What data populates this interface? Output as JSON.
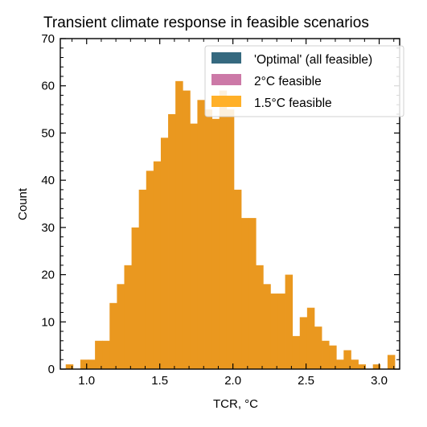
{
  "chart_data": {
    "type": "histogram",
    "title": "Transient climate response in feasible scenarios",
    "xlabel": "TCR, °C",
    "ylabel": "Count",
    "xlim": [
      0.82,
      3.14
    ],
    "ylim": [
      0,
      70
    ],
    "xticks": [
      {
        "value": 1.0,
        "label": "1.0"
      },
      {
        "value": 1.5,
        "label": "1.5"
      },
      {
        "value": 2.0,
        "label": "2.0"
      },
      {
        "value": 2.5,
        "label": "2.5"
      },
      {
        "value": 3.0,
        "label": "3.0"
      }
    ],
    "yticks": [
      {
        "value": 0,
        "label": "0"
      },
      {
        "value": 10,
        "label": "10"
      },
      {
        "value": 20,
        "label": "20"
      },
      {
        "value": 30,
        "label": "30"
      },
      {
        "value": 40,
        "label": "40"
      },
      {
        "value": 50,
        "label": "50"
      },
      {
        "value": 60,
        "label": "60"
      },
      {
        "value": 70,
        "label": "70"
      }
    ],
    "bin_edges": [
      0.857,
      0.907,
      0.957,
      1.007,
      1.057,
      1.107,
      1.157,
      1.207,
      1.257,
      1.307,
      1.357,
      1.407,
      1.457,
      1.507,
      1.557,
      1.607,
      1.657,
      1.707,
      1.757,
      1.807,
      1.857,
      1.907,
      1.957,
      2.007,
      2.057,
      2.107,
      2.157,
      2.207,
      2.257,
      2.307,
      2.357,
      2.407,
      2.457,
      2.507,
      2.557,
      2.607,
      2.657,
      2.707,
      2.757,
      2.807,
      2.857,
      2.907,
      2.957,
      3.007,
      3.057,
      3.107
    ],
    "series": [
      {
        "name": "'Optimal' (all feasible)",
        "color": "#35697f",
        "counts": [
          1,
          0,
          2,
          2,
          6,
          6,
          14,
          18,
          22,
          30,
          38,
          42,
          44,
          49,
          54,
          61,
          59,
          52,
          57,
          55,
          53,
          59,
          55,
          38,
          32,
          32,
          22,
          18,
          16,
          16,
          20,
          7,
          11,
          13,
          9,
          6,
          5,
          2,
          4,
          2,
          1,
          0,
          1,
          0,
          3
        ]
      },
      {
        "name": "2°C feasible",
        "color": "#cc79a7",
        "counts": [
          1,
          0,
          2,
          2,
          6,
          6,
          14,
          18,
          22,
          30,
          38,
          42,
          44,
          49,
          54,
          61,
          59,
          52,
          57,
          55,
          53,
          59,
          55,
          38,
          32,
          32,
          22,
          18,
          16,
          16,
          20,
          7,
          11,
          13,
          9,
          6,
          5,
          2,
          4,
          2,
          1,
          0,
          1,
          0,
          3
        ]
      },
      {
        "name": "1.5°C feasible",
        "color": "#ffb028",
        "counts": [
          1,
          0,
          2,
          2,
          6,
          6,
          14,
          18,
          22,
          30,
          38,
          42,
          44,
          49,
          54,
          61,
          59,
          52,
          57,
          55,
          53,
          59,
          55,
          38,
          32,
          32,
          22,
          18,
          16,
          16,
          20,
          7,
          11,
          13,
          9,
          6,
          5,
          2,
          4,
          2,
          1,
          0,
          1,
          0,
          3
        ]
      }
    ],
    "overlap_color": "#ea981f",
    "legend_position": "upper right"
  }
}
